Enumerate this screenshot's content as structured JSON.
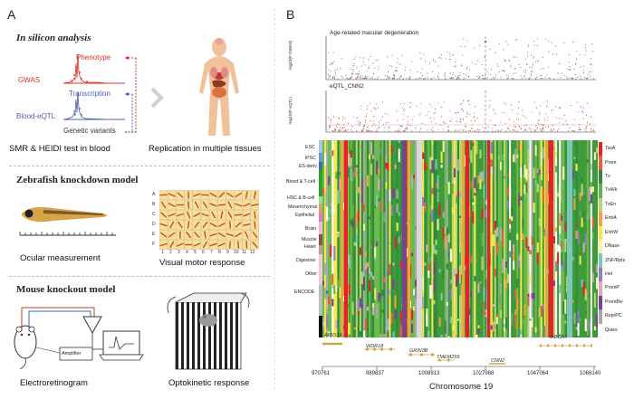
{
  "panel_a": {
    "letter": "A",
    "in_silico": {
      "title": "In silicon analysis",
      "labels": {
        "phenotype": "Phenotype",
        "gwas": "GWAS",
        "transcription": "Transcription",
        "blood_eqtl": "Blood-eQTL",
        "genetic_variants": "Genetic variants"
      },
      "caption_left": "SMR & HEIDI test in blood",
      "caption_right": "Replication in multiple tissues"
    },
    "zebrafish": {
      "title": "Zebrafish knockdown model",
      "caption_left": "Ocular measurement",
      "caption_right": "Visual motor response",
      "grid_rows": [
        "A",
        "B",
        "C",
        "D",
        "E",
        "F"
      ],
      "grid_cols": [
        "1",
        "2",
        "3",
        "4",
        "5",
        "6",
        "7",
        "8",
        "9",
        "10",
        "11",
        "12"
      ]
    },
    "mouse": {
      "title": "Mouse knockout model",
      "amplifier": "Amplifier",
      "caption_left": "Electroretinogram",
      "caption_right": "Optokinetic response"
    }
  },
  "panel_b": {
    "letter": "B",
    "gwas_title": "Age-related macular degeneration",
    "gwas_ylabel": "-log10(P GWAS)",
    "eqtl_title": "eQTL_CNN2",
    "eqtl_ylabel": "-log10(P eQTL)",
    "tracks": [
      "ESC",
      "iPSC",
      "ES-deriv",
      "Blood & T-cell",
      "HSC & B-cell",
      "Mesenchymal",
      "Epithelial",
      "Brain",
      "Muscle",
      "Heart",
      "Digestive",
      "Other",
      "ENCODE"
    ],
    "states": [
      {
        "name": "TssA",
        "color": "#e8202a"
      },
      {
        "name": "Prom",
        "color": "#ef5a3a"
      },
      {
        "name": "Tx",
        "color": "#2e8b3d"
      },
      {
        "name": "TxWk",
        "color": "#5fb44a"
      },
      {
        "name": "TxEn",
        "color": "#b7d66a"
      },
      {
        "name": "EnhA",
        "color": "#f2a23c"
      },
      {
        "name": "EnhW",
        "color": "#f5e94a"
      },
      {
        "name": "DNase",
        "color": "#f7f3a8"
      },
      {
        "name": "ZNF/Rpts",
        "color": "#7bc8b9"
      },
      {
        "name": "Het",
        "color": "#8f7fc2"
      },
      {
        "name": "PromP",
        "color": "#e3a3c8"
      },
      {
        "name": "PromBiv",
        "color": "#7d3f98"
      },
      {
        "name": "ReprPC",
        "color": "#a8a8a8"
      },
      {
        "name": "Quies",
        "color": "#ffffff"
      }
    ],
    "genes": [
      "ARID3A",
      "WDR18",
      "GRIN3B",
      "TMEM259",
      "CNN2",
      "ABCA7"
    ],
    "x_ticks": [
      "970761",
      "989837",
      "1008913",
      "1027988",
      "1047064",
      "1066140"
    ],
    "x_label": "Chromosome 19"
  }
}
